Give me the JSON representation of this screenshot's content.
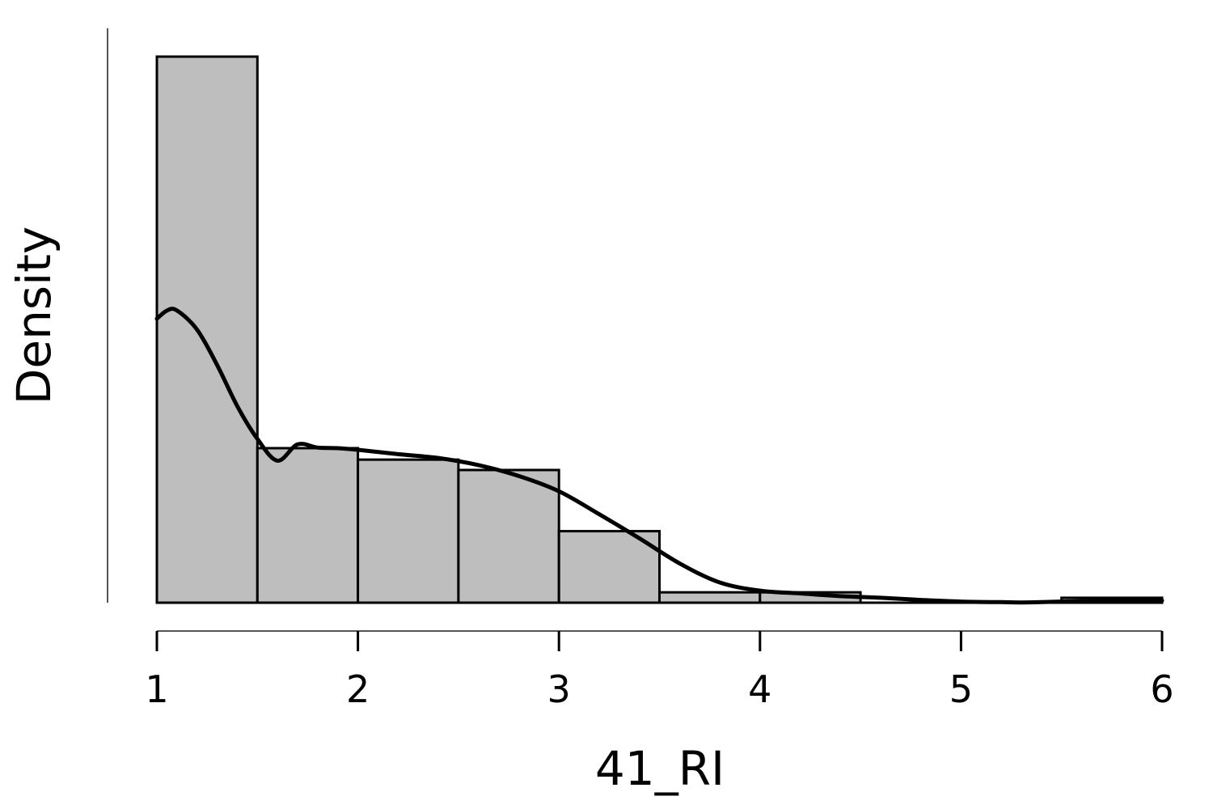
{
  "chart_data": {
    "type": "histogram",
    "xlabel": "41_RI",
    "ylabel": "Density",
    "xlim": [
      1,
      6
    ],
    "x_ticks": [
      "1",
      "2",
      "3",
      "4",
      "5",
      "6"
    ],
    "y_ticks_shown": false,
    "grid": false,
    "legend": "none",
    "bar_fill": "#bebebe",
    "bar_stroke": "#000000",
    "line_color": "#000000",
    "bins": [
      {
        "start": 1.0,
        "end": 1.5,
        "density": 1.0
      },
      {
        "start": 1.5,
        "end": 2.0,
        "density": 0.283
      },
      {
        "start": 2.0,
        "end": 2.5,
        "density": 0.262
      },
      {
        "start": 2.5,
        "end": 3.0,
        "density": 0.243
      },
      {
        "start": 3.0,
        "end": 3.5,
        "density": 0.131
      },
      {
        "start": 3.5,
        "end": 4.0,
        "density": 0.019
      },
      {
        "start": 4.0,
        "end": 4.5,
        "density": 0.019
      },
      {
        "start": 4.5,
        "end": 5.0,
        "density": 0.0
      },
      {
        "start": 5.0,
        "end": 5.5,
        "density": 0.0
      },
      {
        "start": 5.5,
        "end": 6.0,
        "density": 0.009
      }
    ],
    "density_curve": {
      "x": [
        1.0,
        1.05,
        1.1,
        1.2,
        1.3,
        1.4,
        1.5,
        1.6,
        1.7,
        1.8,
        1.9,
        2.0,
        2.2,
        2.4,
        2.6,
        2.8,
        3.0,
        3.2,
        3.4,
        3.6,
        3.8,
        4.0,
        4.2,
        4.4,
        4.6,
        4.8,
        5.0,
        5.2,
        5.3,
        5.4,
        5.6,
        5.8,
        6.0
      ],
      "y": [
        0.52,
        0.535,
        0.535,
        0.5,
        0.435,
        0.36,
        0.3,
        0.26,
        0.29,
        0.284,
        0.283,
        0.28,
        0.272,
        0.265,
        0.252,
        0.232,
        0.204,
        0.162,
        0.118,
        0.072,
        0.037,
        0.022,
        0.017,
        0.012,
        0.009,
        0.005,
        0.002,
        0.001,
        0.0005,
        0.001,
        0.003,
        0.004,
        0.004
      ]
    }
  }
}
